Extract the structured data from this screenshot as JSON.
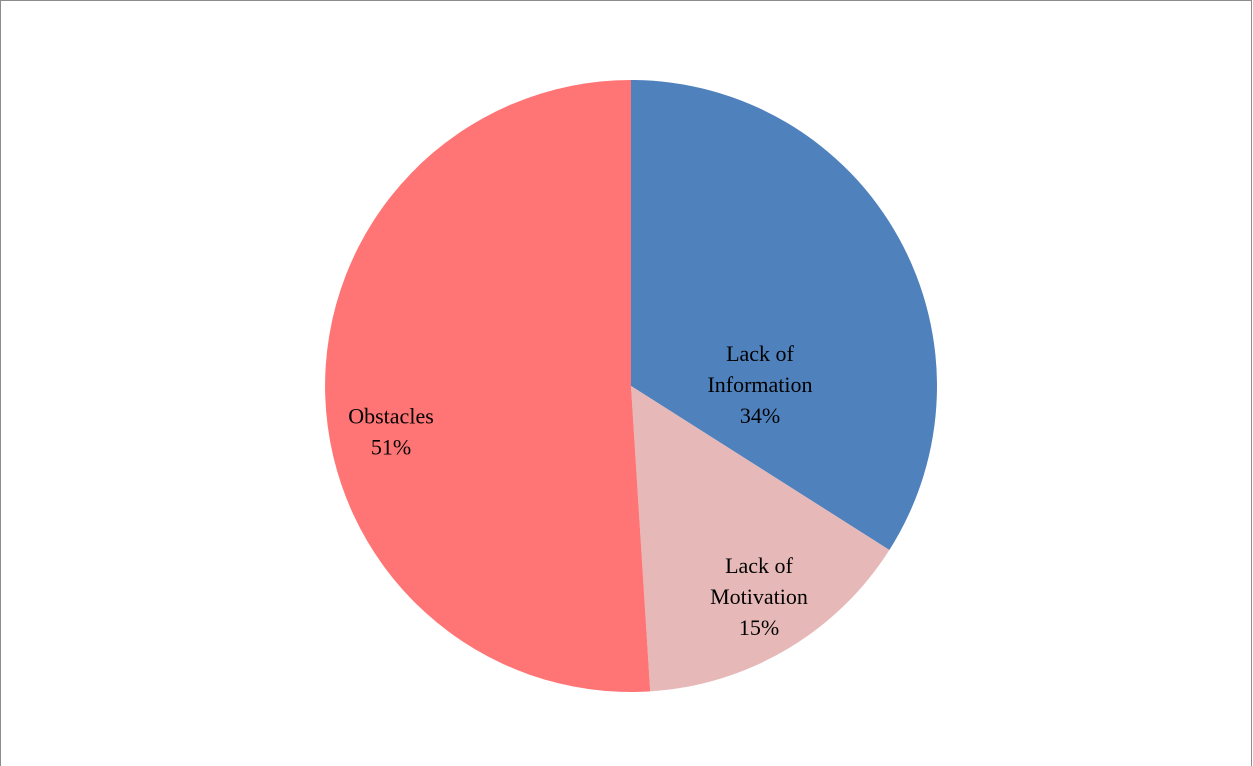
{
  "chart_data": {
    "type": "pie",
    "title": "",
    "start_angle_deg": 0,
    "direction": "clockwise",
    "legend": "none",
    "slices": [
      {
        "label": [
          "Lack of",
          "Information"
        ],
        "percent_label": "34%",
        "value": 34,
        "color": "#4f81bd"
      },
      {
        "label": [
          "Lack of",
          "Motivation"
        ],
        "percent_label": "15%",
        "value": 15,
        "color": "#e6b9b8"
      },
      {
        "label": [
          "Obstacles"
        ],
        "percent_label": "51%",
        "value": 51,
        "color": "#ff7575"
      }
    ]
  }
}
